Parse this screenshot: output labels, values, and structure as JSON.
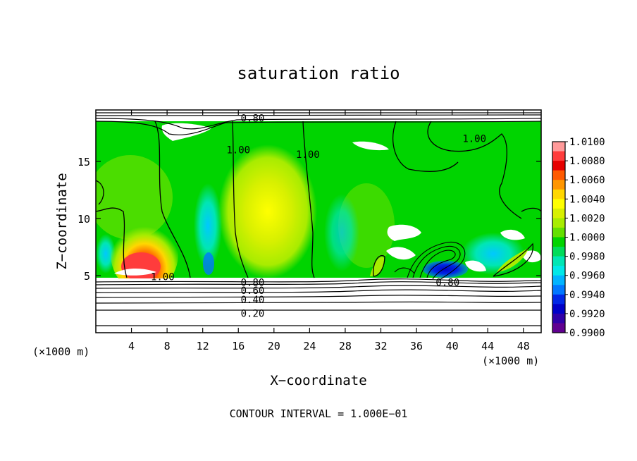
{
  "chart_data": {
    "type": "heatmap",
    "title": "saturation ratio",
    "xlabel": "X−coordinate",
    "ylabel": "Z−coordinate",
    "x_unit_left": "(×1000 m)",
    "x_unit_right": "(×1000 m)",
    "x_ticks": [
      4,
      8,
      12,
      16,
      20,
      24,
      28,
      32,
      36,
      40,
      44,
      48
    ],
    "y_ticks": [
      5,
      10,
      15
    ],
    "xlim": [
      0,
      50
    ],
    "ylim": [
      0,
      19.5
    ],
    "footer": "CONTOUR INTERVAL = 1.000E−01",
    "colorbar": {
      "labels": [
        "1.0100",
        "1.0080",
        "1.0060",
        "1.0040",
        "1.0020",
        "1.0000",
        "0.9980",
        "0.9960",
        "0.9940",
        "0.9920",
        "0.9900"
      ],
      "colors": [
        "#ff9a9a",
        "#ff3c3c",
        "#e60000",
        "#ff5a00",
        "#ff9600",
        "#ffd700",
        "#ffff00",
        "#d8f000",
        "#a8ec00",
        "#64e000",
        "#00d400",
        "#00dc5a",
        "#00e6b4",
        "#00e8e8",
        "#00b4ff",
        "#0078ff",
        "#0028e6",
        "#0000c8",
        "#3000a8",
        "#600090"
      ]
    },
    "contour_labels": [
      {
        "text": "0.80",
        "x": 17.6,
        "y": 18.8
      },
      {
        "text": "1.00",
        "x": 16.0,
        "y": 16.0
      },
      {
        "text": "1.00",
        "x": 23.8,
        "y": 15.6
      },
      {
        "text": "1.00",
        "x": 42.5,
        "y": 17.0
      },
      {
        "text": "1.00",
        "x": 7.5,
        "y": 4.9
      },
      {
        "text": "0.80",
        "x": 17.6,
        "y": 4.4
      },
      {
        "text": "0.60",
        "x": 17.6,
        "y": 3.7
      },
      {
        "text": "0.40",
        "x": 17.6,
        "y": 2.9
      },
      {
        "text": "0.20",
        "x": 17.6,
        "y": 1.7
      },
      {
        "text": "0.80",
        "x": 39.5,
        "y": 4.4
      }
    ]
  }
}
